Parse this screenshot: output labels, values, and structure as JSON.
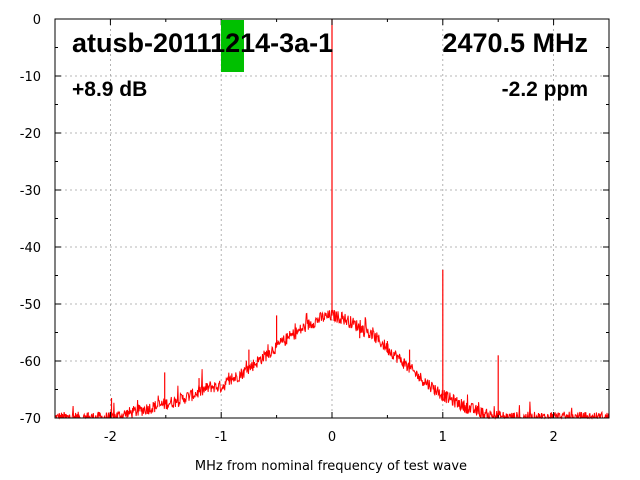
{
  "chart_data": {
    "type": "line",
    "title_left": "atusb-20111214-3a-1",
    "title_right": "2470.5 MHz",
    "subtitle_left": "+8.9 dB",
    "subtitle_right": "-2.2 ppm",
    "xlabel": "MHz from nominal frequency of test wave",
    "ylabel": "",
    "xlim": [
      -2.5,
      2.5
    ],
    "ylim": [
      -70,
      0
    ],
    "x_ticks": [
      -2,
      -1,
      0,
      1,
      2
    ],
    "y_ticks": [
      0,
      -10,
      -20,
      -30,
      -40,
      -50,
      -60,
      -70
    ],
    "grid": true,
    "status_marker_color": "#00c000",
    "series": [
      {
        "color": "#ff0000",
        "envelope": {
          "x": [
            -2.5,
            -2.2,
            -2.0,
            -1.8,
            -1.6,
            -1.4,
            -1.2,
            -1.1,
            -1.0,
            -0.8,
            -0.6,
            -0.4,
            -0.2,
            -0.1,
            0.0,
            0.1,
            0.2,
            0.4,
            0.6,
            0.8,
            1.0,
            1.2,
            1.4,
            1.6,
            1.8,
            2.0,
            2.5
          ],
          "y": [
            -70,
            -70,
            -70,
            -69,
            -68,
            -67,
            -65.5,
            -64.5,
            -64.5,
            -62,
            -59,
            -56,
            -53.5,
            -52.5,
            -52,
            -52.5,
            -53.5,
            -56,
            -59.5,
            -63,
            -66,
            -68,
            -69.5,
            -70,
            -70,
            -70,
            -70
          ]
        },
        "spikes": [
          {
            "x": 0.0,
            "y": 0
          },
          {
            "x": -2.2,
            "y": -69
          },
          {
            "x": -1.99,
            "y": -66.5
          },
          {
            "x": -1.51,
            "y": -62
          },
          {
            "x": -1.2,
            "y": -63
          },
          {
            "x": -0.75,
            "y": -58
          },
          {
            "x": -0.5,
            "y": -52
          },
          {
            "x": 0.25,
            "y": -56
          },
          {
            "x": 0.5,
            "y": -56.5
          },
          {
            "x": 0.7,
            "y": -58
          },
          {
            "x": 1.0,
            "y": -44
          },
          {
            "x": 1.5,
            "y": -59
          },
          {
            "x": 1.98,
            "y": -69
          },
          {
            "x": 2.25,
            "y": -69
          }
        ]
      }
    ]
  }
}
